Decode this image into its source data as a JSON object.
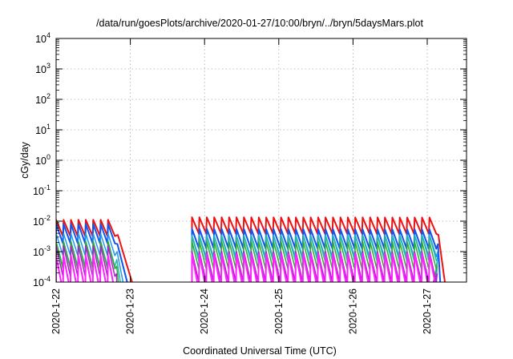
{
  "chart_data": {
    "type": "line",
    "title": "/data/run/goesPlots/archive/2020-01-27/10:00/bryn/../bryn/5daysMars.plot",
    "xlabel": "Coordinated Universal Time (UTC)",
    "ylabel": "cGy/day",
    "yscale": "log",
    "ylim": [
      0.0001,
      10000
    ],
    "xlim": [
      0,
      5.5
    ],
    "grid": true,
    "y_tick_labels": [
      {
        "base": "10",
        "exp": "-4"
      },
      {
        "base": "10",
        "exp": "-3"
      },
      {
        "base": "10",
        "exp": "-2"
      },
      {
        "base": "10",
        "exp": "-1"
      },
      {
        "base": "10",
        "exp": "0"
      },
      {
        "base": "10",
        "exp": "1"
      },
      {
        "base": "10",
        "exp": "2"
      },
      {
        "base": "10",
        "exp": "3"
      },
      {
        "base": "10",
        "exp": "4"
      }
    ],
    "x_tick_labels": [
      "2020-1-22",
      "2020-1-23",
      "2020-1-24",
      "2020-1-25",
      "2020-1-26",
      "2020-1-27"
    ],
    "segments": [
      {
        "start": 0.0,
        "end": 0.72,
        "period": 0.1
      },
      {
        "start": 1.83,
        "end": 5.05,
        "period": 0.1
      }
    ],
    "series": [
      {
        "color": "#ee1111",
        "peak": 0.011,
        "trough": 0.0032,
        "tail_end": 1.05,
        "tail_end2": 5.25,
        "width": 2
      },
      {
        "color": "#1155ee",
        "peak": 0.0065,
        "trough": 0.0015,
        "tail_end": 0.98,
        "tail_end2": 5.18,
        "width": 2
      },
      {
        "color": "#2299ee",
        "peak": 0.0042,
        "trough": 0.0008,
        "tail_end": 0.92,
        "tail_end2": 5.12,
        "width": 1.5
      },
      {
        "color": "#22bbaa",
        "peak": 0.0028,
        "trough": 0.00042,
        "tail_end": 0.88,
        "tail_end2": 5.08,
        "width": 1.5
      },
      {
        "color": "#33aa33",
        "peak": 0.0019,
        "trough": 0.00024,
        "tail_end": 0.85,
        "tail_end2": 5.06,
        "width": 1.5
      },
      {
        "color": "#aa22cc",
        "peak": 0.0013,
        "trough": 0.00013,
        "tail_end": 0.82,
        "tail_end2": 5.04,
        "width": 1.5
      },
      {
        "color": "#ff22ff",
        "peak": 0.0009,
        "trough": 6e-05,
        "tail_end": 0.78,
        "tail_end2": 5.02,
        "width": 2
      }
    ]
  }
}
